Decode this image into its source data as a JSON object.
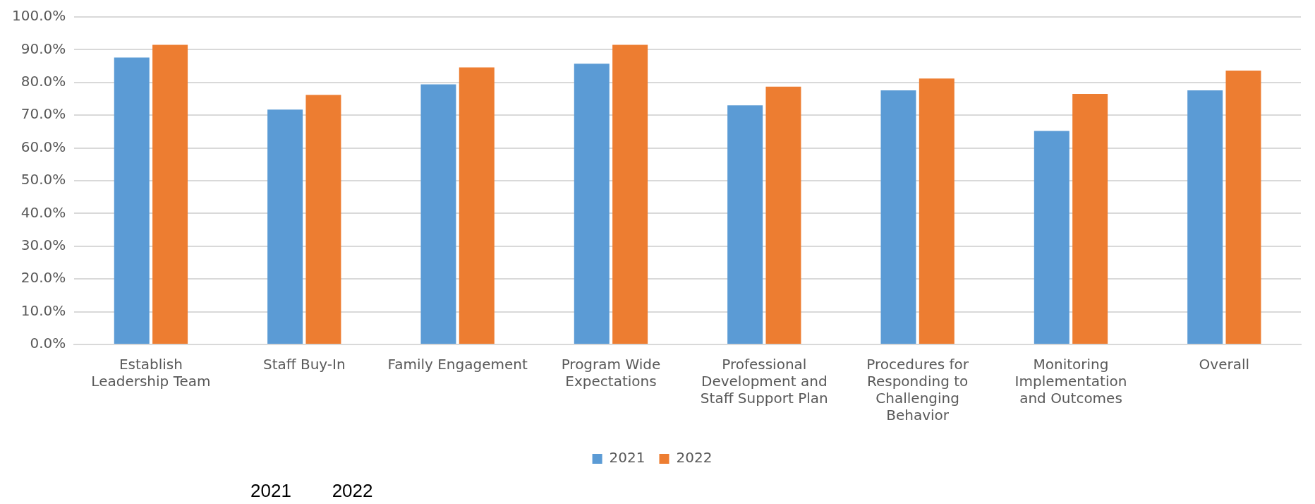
{
  "chart_data": {
    "type": "bar",
    "categories": [
      "Establish Leadership Team",
      "Staff Buy-In",
      "Family Engagement",
      "Program Wide Expectations",
      "Professional Development and Staff Support Plan",
      "Procedures for Responding to Challenging Behavior",
      "Monitoring Implementation and Outcomes",
      "Overall"
    ],
    "series": [
      {
        "name": "2021",
        "color": "#5b9bd5",
        "values": [
          87.6,
          71.7,
          79.4,
          85.7,
          73.0,
          77.6,
          65.2,
          77.6
        ]
      },
      {
        "name": "2022",
        "color": "#ed7d31",
        "values": [
          91.5,
          76.2,
          84.6,
          91.5,
          78.7,
          81.2,
          76.5,
          83.6
        ]
      }
    ],
    "ylim": [
      0,
      100
    ],
    "yticks": [
      {
        "value": 0,
        "label": "0.0%"
      },
      {
        "value": 10,
        "label": "10.0%"
      },
      {
        "value": 20,
        "label": "20.0%"
      },
      {
        "value": 30,
        "label": "30.0%"
      },
      {
        "value": 40,
        "label": "40.0%"
      },
      {
        "value": 50,
        "label": "50.0%"
      },
      {
        "value": 60,
        "label": "60.0%"
      },
      {
        "value": 70,
        "label": "70.0%"
      },
      {
        "value": 80,
        "label": "80.0%"
      },
      {
        "value": 90,
        "label": "90.0%"
      },
      {
        "value": 100,
        "label": "100.0%"
      }
    ],
    "grid": "y",
    "legend": "bottom",
    "annotations": [
      "2021        2022"
    ]
  }
}
